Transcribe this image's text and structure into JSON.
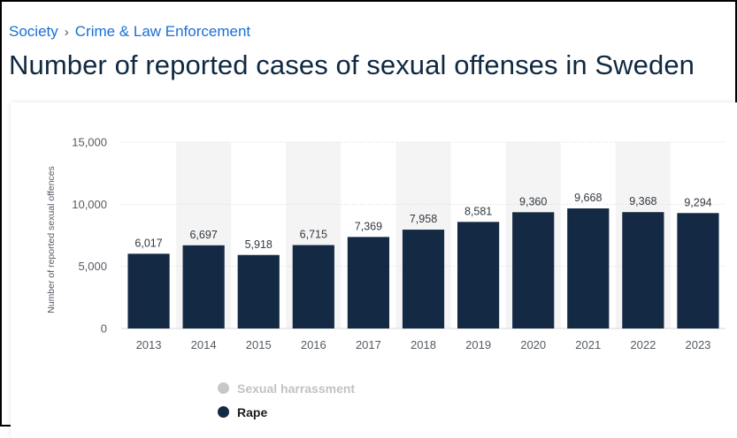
{
  "breadcrumb": {
    "items": [
      "Society",
      "Crime & Law Enforcement"
    ],
    "separator": "›"
  },
  "page_title": "Number of reported cases of sexual offenses in Sweden",
  "chart_data": {
    "type": "bar",
    "categories": [
      "2013",
      "2014",
      "2015",
      "2016",
      "2017",
      "2018",
      "2019",
      "2020",
      "2021",
      "2022",
      "2023"
    ],
    "series": [
      {
        "name": "Rape",
        "values": [
          6017,
          6697,
          5918,
          6715,
          7369,
          7958,
          8581,
          9360,
          9668,
          9368,
          9294
        ],
        "color": "#142a44"
      }
    ],
    "data_labels": [
      "6,017",
      "6,697",
      "5,918",
      "6,715",
      "7,369",
      "7,958",
      "8,581",
      "9,360",
      "9,668",
      "9,368",
      "9,294"
    ],
    "ylabel": "Number of reported sexual offences",
    "xlabel": "",
    "ylim": [
      0,
      15000
    ],
    "yticks": [
      0,
      5000,
      10000,
      15000
    ],
    "ytick_labels": [
      "0",
      "5,000",
      "10,000",
      "15,000"
    ],
    "grid": true,
    "legend_position": "bottom-left"
  },
  "legend": {
    "items": [
      {
        "label": "Sexual harrassment",
        "color": "#c8c8c8",
        "active": false
      },
      {
        "label": "Rape",
        "color": "#142a44",
        "active": true
      }
    ]
  }
}
